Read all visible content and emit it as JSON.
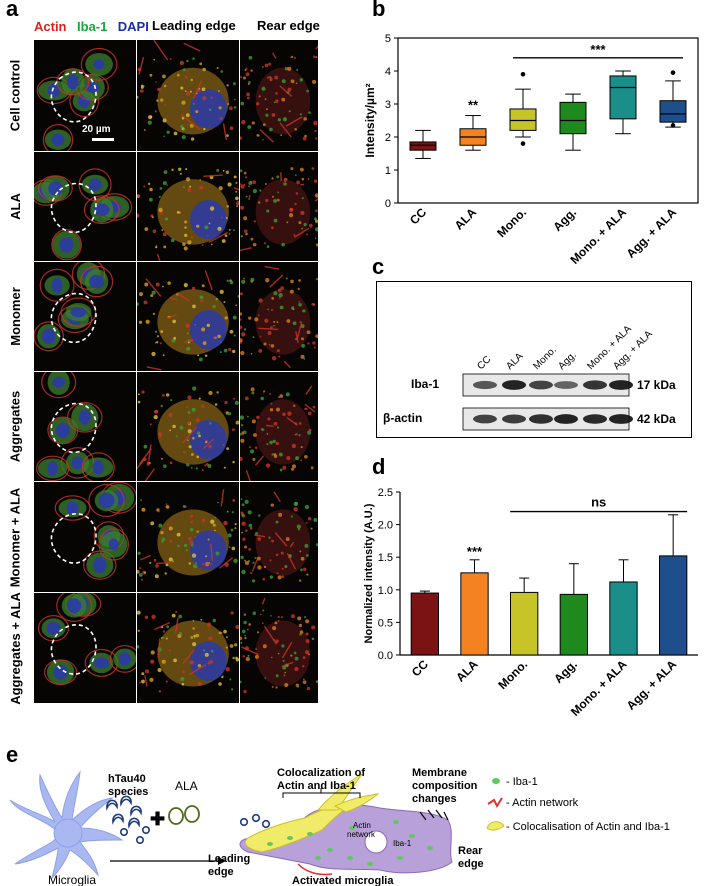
{
  "panel_a": {
    "label": "a",
    "channels": [
      {
        "name": "Actin",
        "color": "#e02020"
      },
      {
        "name": "Iba-1",
        "color": "#18a53a"
      },
      {
        "name": "DAPI",
        "color": "#1a2fa8"
      }
    ],
    "columns": [
      "Leading edge",
      "Rear edge"
    ],
    "rows": [
      "Cell control",
      "ALA",
      "Monomer",
      "Aggregates",
      "Monomer + ALA",
      "Aggregates + ALA"
    ],
    "scalebar": "20 µm"
  },
  "panel_b": {
    "label": "b"
  },
  "panel_c": {
    "label": "c",
    "lanes": [
      "CC",
      "ALA",
      "Mono.",
      "Agg.",
      "Mono. + ALA",
      "Agg. + ALA"
    ],
    "bands": [
      {
        "name": "Iba-1",
        "size": "17 kDa",
        "intensities": [
          0.55,
          0.95,
          0.7,
          0.45,
          0.8,
          0.95
        ]
      },
      {
        "name": "β-actin",
        "size": "42 kDa",
        "intensities": [
          0.7,
          0.75,
          0.85,
          0.95,
          0.9,
          0.95
        ]
      }
    ]
  },
  "panel_d": {
    "label": "d"
  },
  "panel_e": {
    "label": "e",
    "labels": {
      "microglia": "Microglia",
      "species": "hTau40 species",
      "ala": "ALA",
      "colocalization": "Colocalization of Actin and Iba-1",
      "membrane": "Membrane composition changes",
      "actin_network_inner": "Actin network",
      "iba_inner": "Iba-1",
      "leading_edge": "Leading edge",
      "rear_edge": "Rear edge",
      "activated": "Activated microglia"
    },
    "legend": [
      "- Iba-1",
      "- Actin network",
      "- Colocalisation of  Actin and Iba-1"
    ]
  },
  "chart_data": [
    {
      "type": "box",
      "panel": "b",
      "ylabel": "Intensity/µm²",
      "ylim": [
        0,
        5
      ],
      "yticks": [
        0,
        1,
        2,
        3,
        4,
        5
      ],
      "categories": [
        "CC",
        "ALA",
        "Mono.",
        "Agg.",
        "Mono. + ALA",
        "Agg. + ALA"
      ],
      "colors": [
        "#7a1414",
        "#f58220",
        "#c6c427",
        "#1e8a1e",
        "#1a8f8a",
        "#1f4e8c"
      ],
      "boxes": [
        {
          "min": 1.35,
          "q1": 1.6,
          "median": 1.75,
          "q3": 1.85,
          "max": 2.2,
          "outliers": []
        },
        {
          "min": 1.6,
          "q1": 1.75,
          "median": 2.0,
          "q3": 2.25,
          "max": 2.65,
          "outliers": []
        },
        {
          "min": 2.0,
          "q1": 2.2,
          "median": 2.5,
          "q3": 2.85,
          "max": 3.45,
          "outliers": [
            3.9,
            1.8
          ]
        },
        {
          "min": 1.6,
          "q1": 2.1,
          "median": 2.5,
          "q3": 3.05,
          "max": 3.3,
          "outliers": []
        },
        {
          "min": 2.1,
          "q1": 2.55,
          "median": 3.5,
          "q3": 3.85,
          "max": 4.0,
          "outliers": []
        },
        {
          "min": 2.3,
          "q1": 2.45,
          "median": 2.7,
          "q3": 3.1,
          "max": 3.7,
          "outliers": [
            3.95,
            2.35
          ]
        }
      ],
      "annotations": [
        {
          "text": "**",
          "category": "ALA"
        },
        {
          "text": "***",
          "from": "Mono.",
          "to": "Agg. + ALA"
        }
      ]
    },
    {
      "type": "bar",
      "panel": "d",
      "ylabel": "Normalized intensity (A.U.)",
      "ylim": [
        0,
        2.5
      ],
      "yticks": [
        0.0,
        0.5,
        1.0,
        1.5,
        2.0,
        2.5
      ],
      "categories": [
        "CC",
        "ALA",
        "Mono.",
        "Agg.",
        "Mono. + ALA",
        "Agg. + ALA"
      ],
      "colors": [
        "#7a1414",
        "#f58220",
        "#c6c427",
        "#1e8a1e",
        "#1a8f8a",
        "#1f4e8c"
      ],
      "values": [
        0.95,
        1.26,
        0.96,
        0.93,
        1.12,
        1.52
      ],
      "errors": [
        0.03,
        0.2,
        0.22,
        0.47,
        0.34,
        0.63
      ],
      "annotations": [
        {
          "text": "***",
          "category": "ALA"
        },
        {
          "text": "ns",
          "from": "Mono.",
          "to": "Agg. + ALA"
        }
      ]
    }
  ]
}
